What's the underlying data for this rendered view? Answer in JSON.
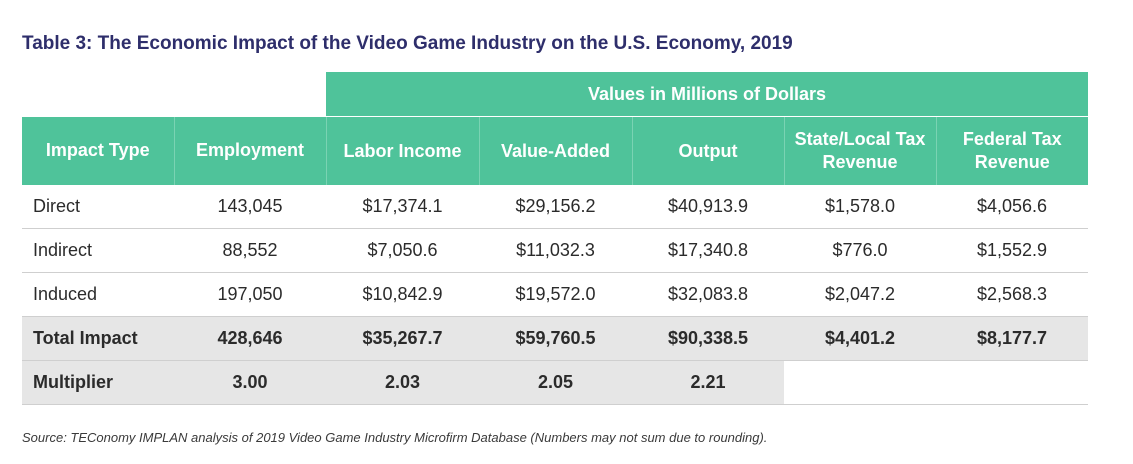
{
  "title": "Table 3: The Economic Impact of the Video Game Industry on the U.S. Economy, 2019",
  "group_header": "Values in Millions of Dollars",
  "columns": [
    "Impact Type",
    "Employment",
    "Labor Income",
    "Value-Added",
    "Output",
    "State/Local Tax Revenue",
    "Federal Tax Revenue"
  ],
  "rows": [
    [
      "Direct",
      "143,045",
      "$17,374.1",
      "$29,156.2",
      "$40,913.9",
      "$1,578.0",
      "$4,056.6"
    ],
    [
      "Indirect",
      "88,552",
      "$7,050.6",
      "$11,032.3",
      "$17,340.8",
      "$776.0",
      "$1,552.9"
    ],
    [
      "Induced",
      "197,050",
      "$10,842.9",
      "$19,572.0",
      "$32,083.8",
      "$2,047.2",
      "$2,568.3"
    ],
    [
      "Total Impact",
      "428,646",
      "$35,267.7",
      "$59,760.5",
      "$90,338.5",
      "$4,401.2",
      "$8,177.7"
    ],
    [
      "Multiplier",
      "3.00",
      "2.03",
      "2.05",
      "2.21",
      "",
      ""
    ]
  ],
  "source": "Source: TEConomy IMPLAN analysis of 2019 Video Game Industry Microfirm Database (Numbers may not sum due to rounding)."
}
